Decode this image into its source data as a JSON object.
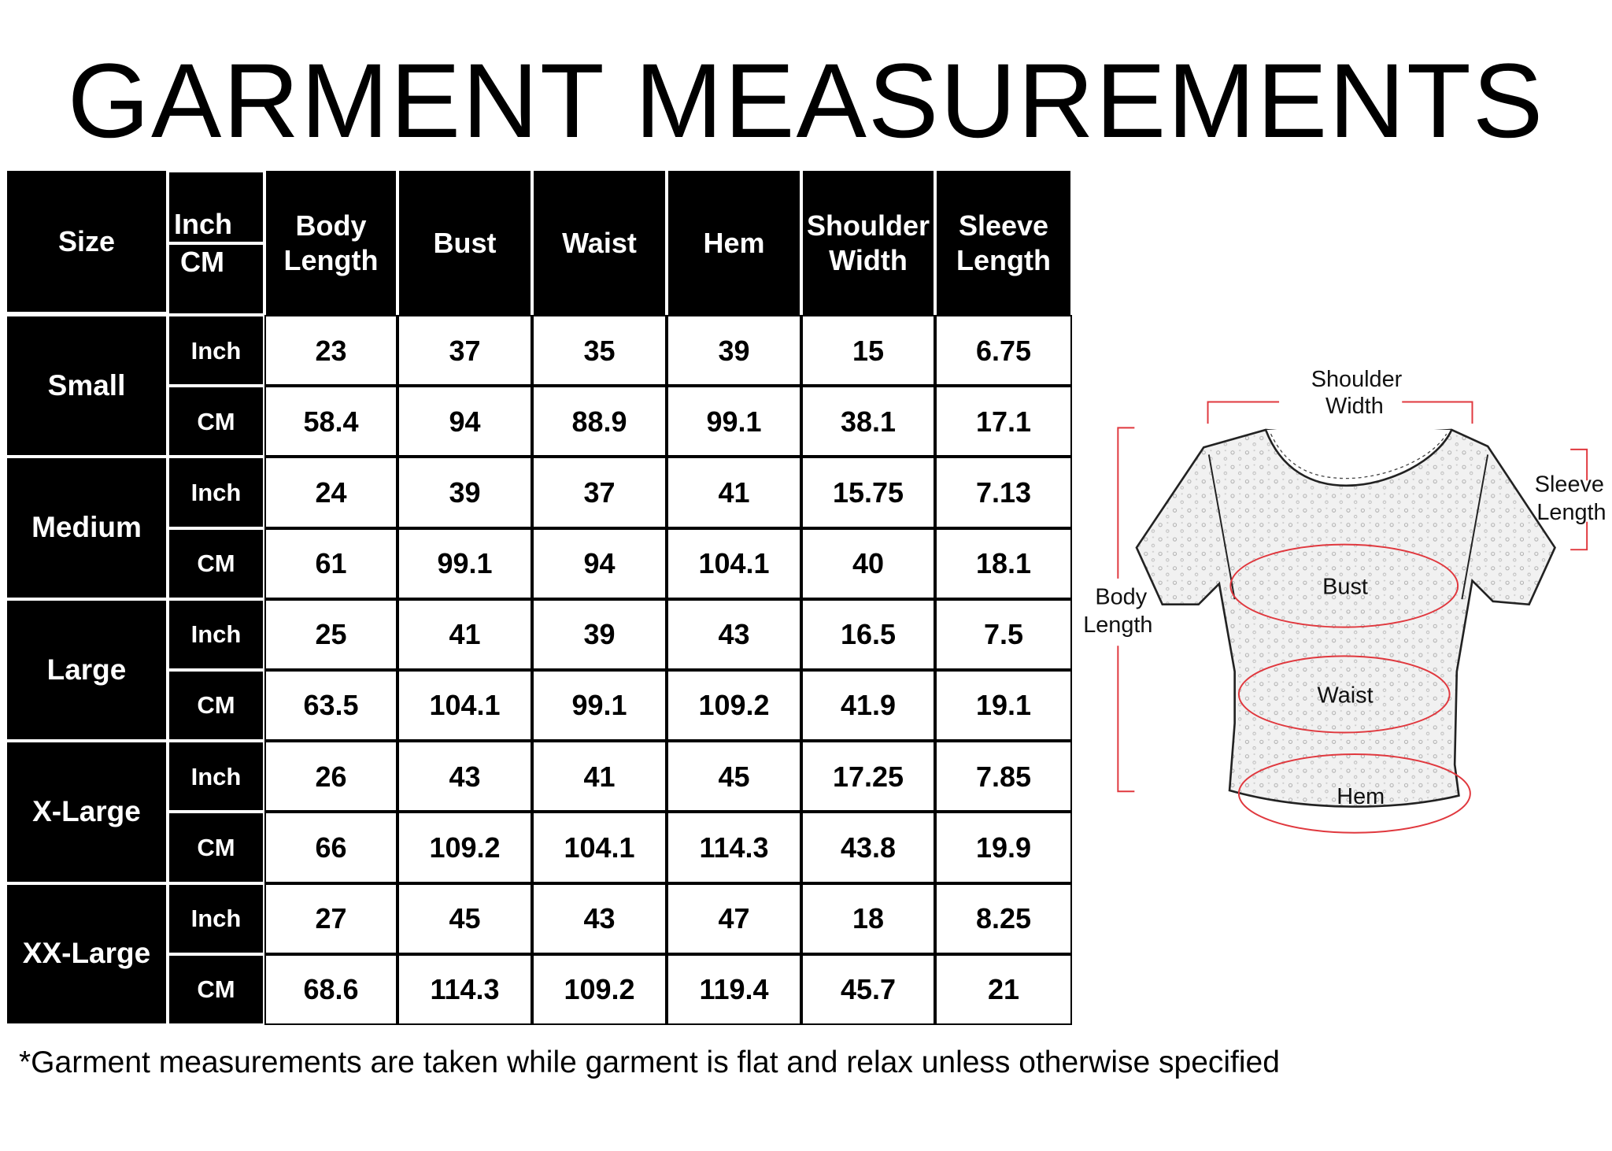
{
  "title": "GARMENT MEASUREMENTS",
  "table": {
    "headers": {
      "size": "Size",
      "unit_top": "Inch",
      "unit_bottom": "CM",
      "columns": [
        "Body Length",
        "Bust",
        "Waist",
        "Hem",
        "Shoulder Width",
        "Sleeve Length"
      ]
    },
    "rows": [
      {
        "size": "Small",
        "inch_label": "Inch",
        "cm_label": "CM",
        "inch": [
          "23",
          "37",
          "35",
          "39",
          "15",
          "6.75"
        ],
        "cm": [
          "58.4",
          "94",
          "88.9",
          "99.1",
          "38.1",
          "17.1"
        ]
      },
      {
        "size": "Medium",
        "inch_label": "Inch",
        "cm_label": "CM",
        "inch": [
          "24",
          "39",
          "37",
          "41",
          "15.75",
          "7.13"
        ],
        "cm": [
          "61",
          "99.1",
          "94",
          "104.1",
          "40",
          "18.1"
        ]
      },
      {
        "size": "Large",
        "inch_label": "Inch",
        "cm_label": "CM",
        "inch": [
          "25",
          "41",
          "39",
          "43",
          "16.5",
          "7.5"
        ],
        "cm": [
          "63.5",
          "104.1",
          "99.1",
          "109.2",
          "41.9",
          "19.1"
        ]
      },
      {
        "size": "X-Large",
        "inch_label": "Inch",
        "cm_label": "CM",
        "inch": [
          "26",
          "43",
          "41",
          "45",
          "17.25",
          "7.85"
        ],
        "cm": [
          "66",
          "109.2",
          "104.1",
          "114.3",
          "43.8",
          "19.9"
        ]
      },
      {
        "size": "XX-Large",
        "inch_label": "Inch",
        "cm_label": "CM",
        "inch": [
          "27",
          "45",
          "43",
          "47",
          "18",
          "8.25"
        ],
        "cm": [
          "68.6",
          "114.3",
          "109.2",
          "119.4",
          "45.7",
          "21"
        ]
      }
    ]
  },
  "diagram": {
    "shoulder_width": [
      "Shoulder",
      "Width"
    ],
    "sleeve_length": [
      "Sleeve",
      "Length"
    ],
    "body_length": [
      "Body",
      "Length"
    ],
    "bust": "Bust",
    "waist": "Waist",
    "hem": "Hem",
    "accent_color": "#e0383e"
  },
  "footnote": "*Garment measurements are taken while garment is flat and relax unless otherwise specified"
}
